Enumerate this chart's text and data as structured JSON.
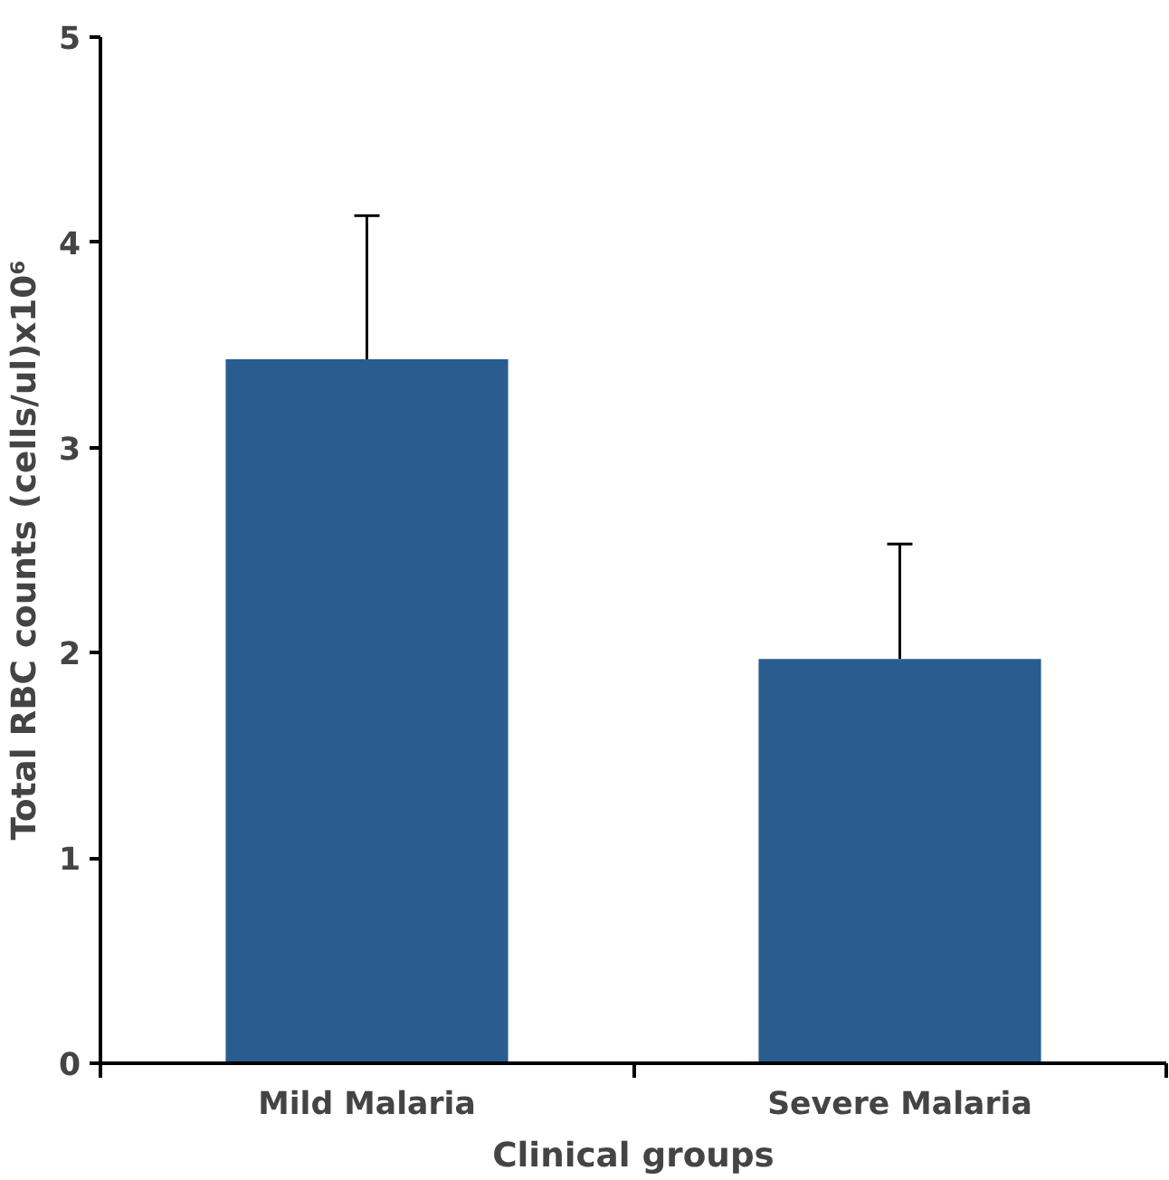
{
  "chart_data": {
    "type": "bar",
    "xlabel": "Clinical groups",
    "ylabel": "Total RBC counts (cells/ul)x10⁶",
    "categories": [
      "Mild Malaria",
      "Severe Malaria"
    ],
    "values": [
      3.43,
      1.97
    ],
    "errors": [
      [
        3.43,
        4.13
      ],
      [
        1.97,
        2.53
      ]
    ],
    "color": "#2a5d8f",
    "ylim": [
      0,
      5
    ],
    "yticks": [
      0,
      1,
      2,
      3,
      4,
      5
    ],
    "grid": false
  }
}
